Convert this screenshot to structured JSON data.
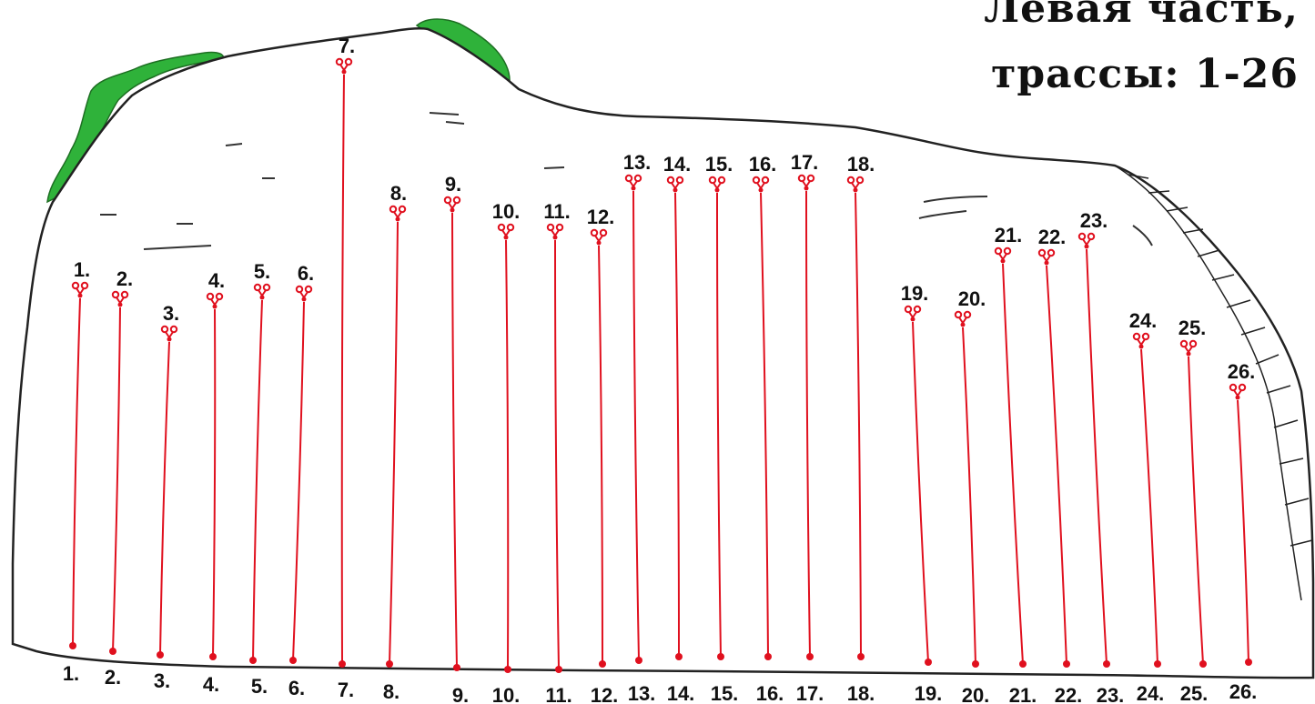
{
  "title": {
    "line1": "Левая часть,",
    "line2": "трассы: 1-26"
  },
  "colors": {
    "route": "#e0101e",
    "rock_outline": "#222222",
    "vegetation": "#2fb23a",
    "label": "#111111"
  },
  "routes": [
    {
      "label": "1."
    },
    {
      "label": "2."
    },
    {
      "label": "3."
    },
    {
      "label": "4."
    },
    {
      "label": "5."
    },
    {
      "label": "6."
    },
    {
      "label": "7."
    },
    {
      "label": "8."
    },
    {
      "label": "9."
    },
    {
      "label": "10."
    },
    {
      "label": "11."
    },
    {
      "label": "12."
    },
    {
      "label": "13."
    },
    {
      "label": "14."
    },
    {
      "label": "15."
    },
    {
      "label": "16."
    },
    {
      "label": "17."
    },
    {
      "label": "18."
    },
    {
      "label": "19."
    },
    {
      "label": "20."
    },
    {
      "label": "21."
    },
    {
      "label": "22."
    },
    {
      "label": "23."
    },
    {
      "label": "24."
    },
    {
      "label": "25."
    },
    {
      "label": "26."
    }
  ]
}
